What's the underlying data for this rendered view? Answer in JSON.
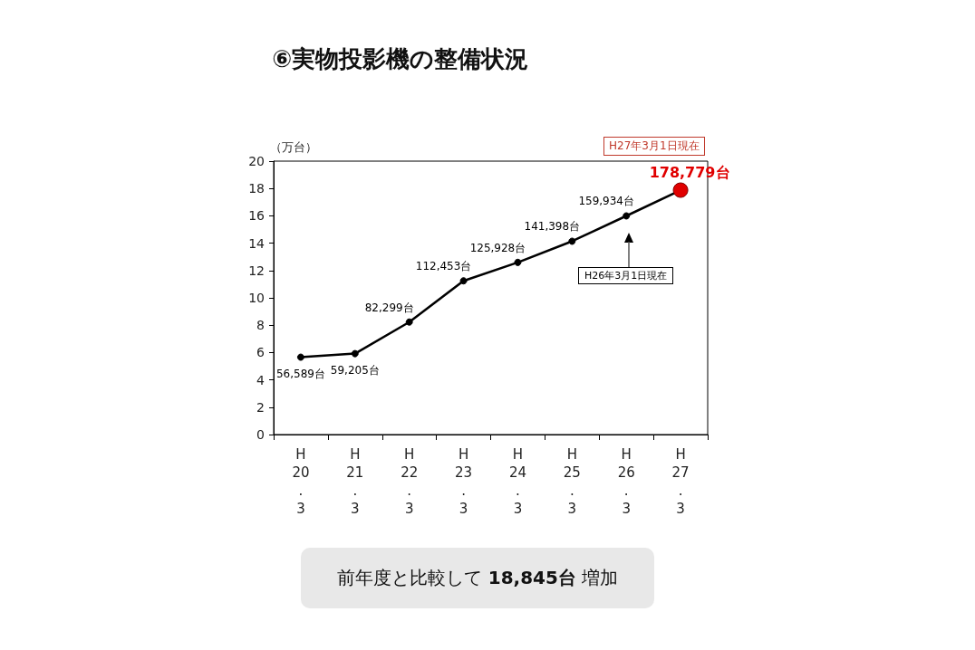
{
  "chart_data": {
    "type": "line",
    "title": "⑥実物投影機の整備状況",
    "ylabel": "（万台）",
    "categories": [
      "H\n20\n.\n3",
      "H\n21\n.\n3",
      "H\n22\n.\n3",
      "H\n23\n.\n3",
      "H\n24\n.\n3",
      "H\n25\n.\n3",
      "H\n26\n.\n3",
      "H\n27\n.\n3"
    ],
    "series": [
      {
        "color": "#000000",
        "colors": [
          "#000000",
          "#000000",
          "#000000",
          "#000000",
          "#000000",
          "#000000",
          "#000000",
          "#e00000"
        ],
        "values": [
          5.6589,
          5.9205,
          8.2299,
          11.2453,
          12.5928,
          14.1398,
          15.9934,
          17.8779
        ]
      }
    ],
    "ylim": [
      0,
      20
    ],
    "yticks": [
      0,
      2,
      4,
      6,
      8,
      10,
      12,
      14,
      16,
      18,
      20
    ],
    "grid": false,
    "marker": "circle",
    "line_style": "solid",
    "annotations": [
      {
        "text": "56,589台",
        "x": "H\n20\n.\n3",
        "y": 5.6589
      },
      {
        "text": "59,205台",
        "x": "H\n21\n.\n3",
        "y": 5.9205
      },
      {
        "text": "82,299台",
        "x": "H\n22\n.\n3",
        "y": 8.2299
      },
      {
        "text": "112,453台",
        "x": "H\n23\n.\n3",
        "y": 11.2453
      },
      {
        "text": "125,928台",
        "x": "H\n24\n.\n3",
        "y": 12.5928
      },
      {
        "text": "141,398台",
        "x": "H\n25\n.\n3",
        "y": 14.1398
      },
      {
        "text": "159,934台",
        "x": "H\n26\n.\n3",
        "y": 15.9934
      },
      {
        "text": "178,779台",
        "x": "H\n27\n.\n3",
        "y": 17.8779
      },
      "H27年3月1日現在",
      "H26年3月1日現在",
      "前年度と比較して 18,845台 増加"
    ]
  }
}
